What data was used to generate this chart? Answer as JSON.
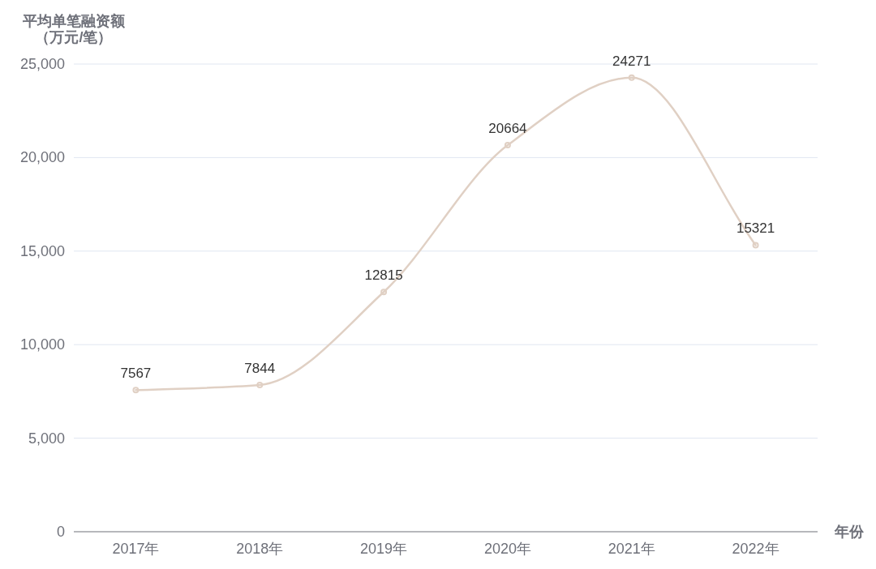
{
  "chart_data": {
    "type": "line",
    "ylabel": "平均单笔融资额（万元/笔）",
    "xlabel": "年份",
    "categories": [
      "2017年",
      "2018年",
      "2019年",
      "2020年",
      "2021年",
      "2022年"
    ],
    "series": [
      {
        "color": "#e0d0c4",
        "values": [
          7567,
          7844,
          12815,
          20664,
          24271,
          15321
        ]
      }
    ],
    "ylim": [
      0,
      25000
    ],
    "yticks": [
      0,
      {
        "value": 5000,
        "label": "5,000"
      },
      {
        "value": 10000,
        "label": "10,000"
      },
      {
        "value": 15000,
        "label": "15,000"
      },
      {
        "value": 20000,
        "label": "20,000"
      },
      {
        "value": 25000,
        "label": "25,000"
      }
    ],
    "grid": "y",
    "marker": "circle",
    "line_style": "solid",
    "data_labels": true
  }
}
